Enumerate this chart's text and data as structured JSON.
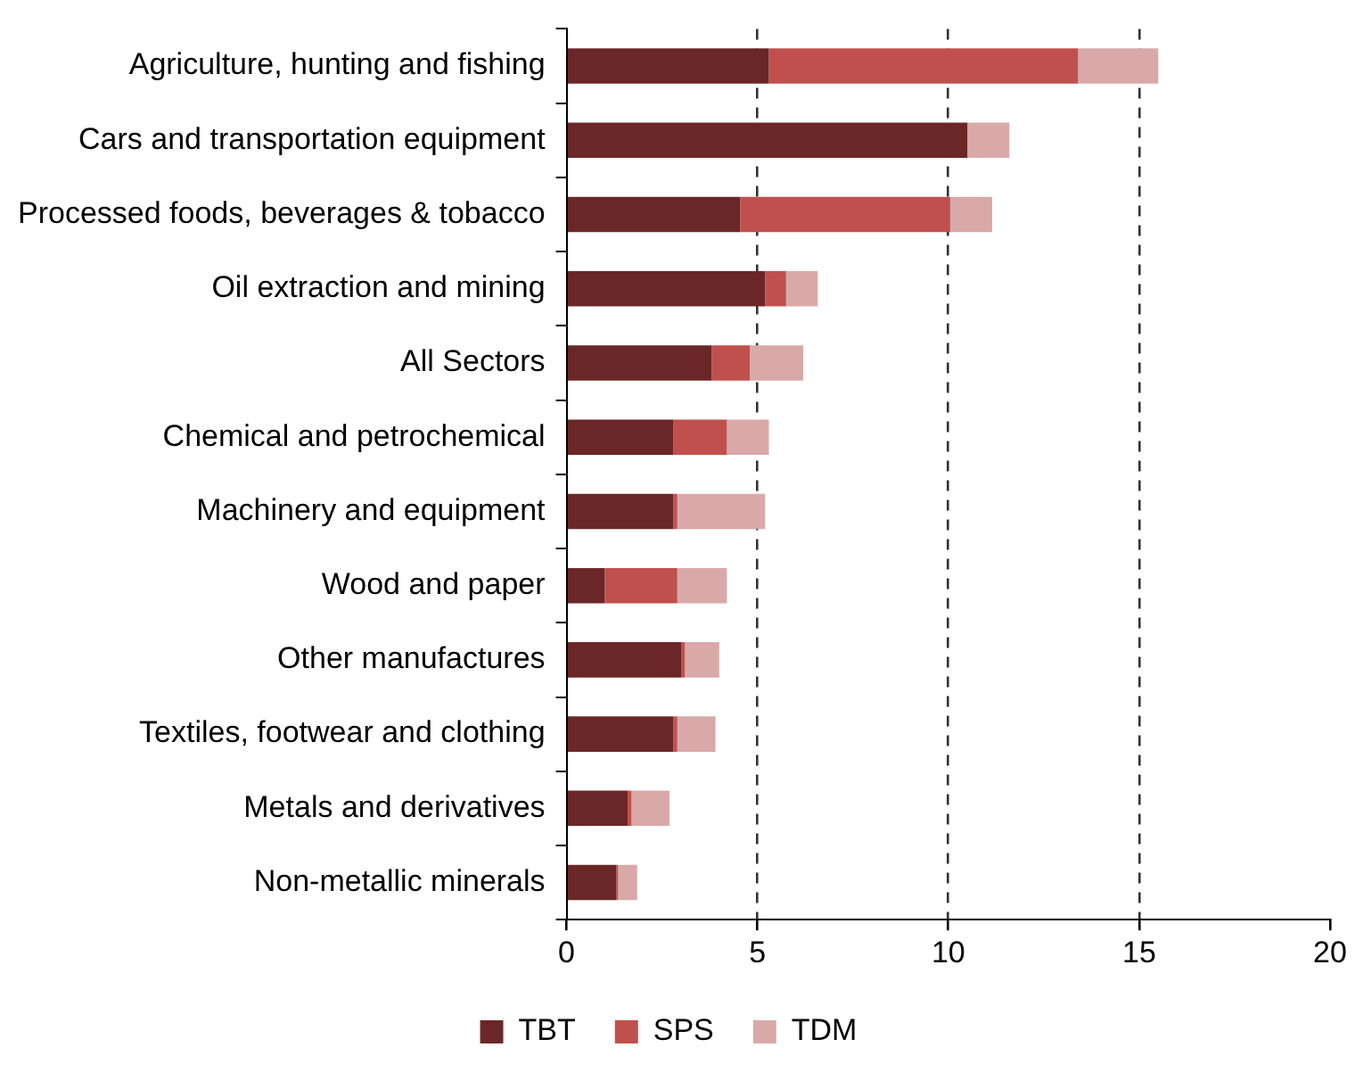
{
  "chart_data": {
    "type": "bar",
    "orientation": "horizontal",
    "stacked": true,
    "categories": [
      "Agriculture, hunting and fishing",
      "Cars and transportation equipment",
      "Processed foods, beverages & tobacco",
      "Oil extraction and mining",
      "All Sectors",
      "Chemical and petrochemical",
      "Machinery and equipment",
      "Wood and paper",
      "Other manufactures",
      "Textiles, footwear and clothing",
      "Metals and derivatives",
      "Non-metallic minerals"
    ],
    "series": [
      {
        "name": "TBT",
        "color": "#6b2727",
        "values": [
          5.3,
          10.5,
          4.55,
          5.2,
          3.8,
          2.8,
          2.8,
          1.0,
          3.0,
          2.8,
          1.6,
          1.3
        ]
      },
      {
        "name": "SPS",
        "color": "#c0504d",
        "values": [
          8.1,
          0,
          5.5,
          0.55,
          1.0,
          1.4,
          0.1,
          1.9,
          0.1,
          0.1,
          0.1,
          0.05
        ]
      },
      {
        "name": "TDM",
        "color": "#d9a9a9",
        "values": [
          2.1,
          1.1,
          1.1,
          0.83,
          1.4,
          1.1,
          2.3,
          1.3,
          0.9,
          1.0,
          1.0,
          0.5
        ]
      }
    ],
    "xlim": [
      0,
      20
    ],
    "xticks": [
      0,
      5,
      10,
      15,
      20
    ],
    "grid": "x",
    "legend": "bottom"
  }
}
